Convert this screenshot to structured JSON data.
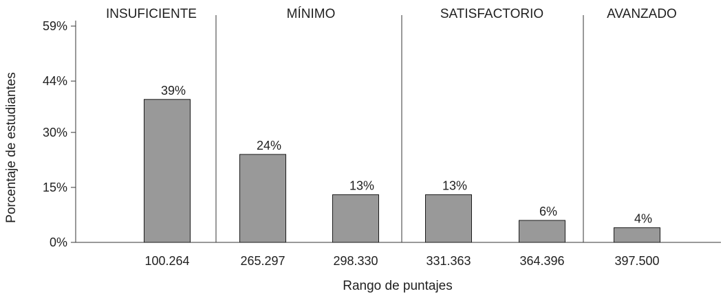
{
  "chart_data": {
    "type": "bar",
    "xlabel": "Rango de puntajes",
    "ylabel": "Porcentaje de estudiantes",
    "ylim": [
      0,
      59
    ],
    "yticks": [
      {
        "value": 0,
        "label": "0%"
      },
      {
        "value": 15,
        "label": "15%"
      },
      {
        "value": 30,
        "label": "30%"
      },
      {
        "value": 44,
        "label": "44%"
      },
      {
        "value": 59,
        "label": "59%"
      }
    ],
    "categories": [
      "100.264",
      "265.297",
      "298.330",
      "331.363",
      "364.396",
      "397.500"
    ],
    "values": [
      39,
      24,
      13,
      13,
      6,
      4
    ],
    "data_labels": [
      "39%",
      "24%",
      "13%",
      "13%",
      "6%",
      "4%"
    ],
    "levels": [
      {
        "name": "INSUFICIENTE"
      },
      {
        "name": "MÍNIMO"
      },
      {
        "name": "SATISFACTORIO"
      },
      {
        "name": "AVANZADO"
      }
    ],
    "bar_color": "#999999",
    "bar_stroke": "#1a1a1a",
    "grid": false
  }
}
